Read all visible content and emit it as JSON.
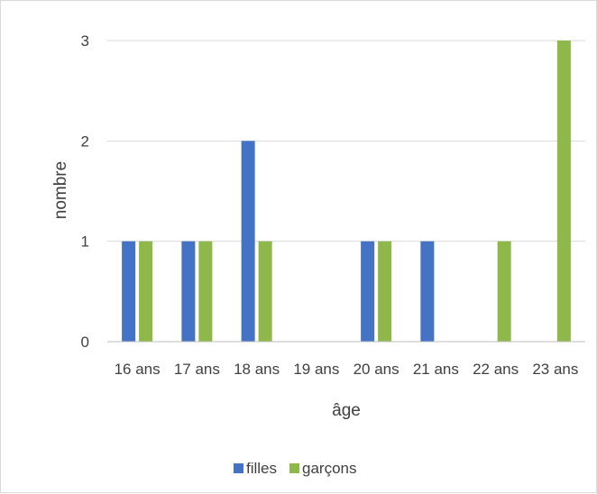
{
  "chart_data": {
    "type": "bar",
    "title": "",
    "xlabel": "âge",
    "ylabel": "nombre",
    "categories": [
      "16 ans",
      "17 ans",
      "18 ans",
      "19 ans",
      "20 ans",
      "21 ans",
      "22 ans",
      "23 ans"
    ],
    "series": [
      {
        "name": "filles",
        "color": "#4472c4",
        "values": [
          1,
          1,
          2,
          0,
          1,
          1,
          0,
          0
        ]
      },
      {
        "name": "garçons",
        "color": "#8fb84a",
        "values": [
          1,
          1,
          1,
          0,
          1,
          0,
          1,
          3
        ]
      }
    ],
    "ylim": [
      0,
      3
    ],
    "yticks": [
      0,
      1,
      2,
      3
    ],
    "grid": true,
    "legend_position": "bottom"
  }
}
